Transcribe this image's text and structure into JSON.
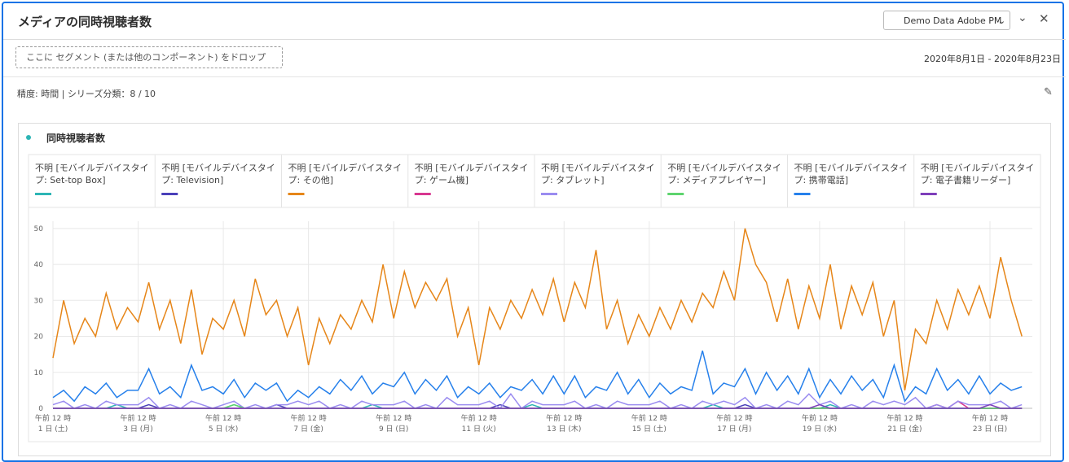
{
  "header": {
    "title": "メディアの同時視聴者数",
    "dropdown": "Demo Data Adobe PM",
    "drop_zone": "ここに セグメント (または他のコンポーネント) をドロップ",
    "date_range": "2020年8月1日 - 2020年8月23日",
    "settings": "精度: 時間 | シリーズ分類：8 / 10"
  },
  "chart_data": {
    "type": "line",
    "title": "同時視聴者数",
    "x_time_label": "午前 12 時",
    "categories": [
      "1 日 (土)",
      null,
      null,
      null,
      null,
      null,
      null,
      null,
      "3 日 (月)",
      null,
      null,
      null,
      null,
      null,
      null,
      null,
      "5 日 (水)",
      null,
      null,
      null,
      null,
      null,
      null,
      null,
      "7 日 (金)",
      null,
      null,
      null,
      null,
      null,
      null,
      null,
      "9 日 (日)",
      null,
      null,
      null,
      null,
      null,
      null,
      null,
      "11 日 (火)",
      null,
      null,
      null,
      null,
      null,
      null,
      null,
      "13 日 (木)",
      null,
      null,
      null,
      null,
      null,
      null,
      null,
      "15 日 (土)",
      null,
      null,
      null,
      null,
      null,
      null,
      null,
      "17 日 (月)",
      null,
      null,
      null,
      null,
      null,
      null,
      null,
      "19 日 (水)",
      null,
      null,
      null,
      null,
      null,
      null,
      null,
      "21 日 (金)",
      null,
      null,
      null,
      null,
      null,
      null,
      null,
      "23 日 (日)",
      null,
      null,
      null
    ],
    "ylim": [
      0,
      52
    ],
    "yticks": [
      0,
      10,
      20,
      30,
      40,
      50
    ],
    "grid": true,
    "series": [
      {
        "name": "不明 [モバイルデバイスタイプ: Set-top Box]",
        "color": "#2db5b5",
        "values": [
          0,
          0,
          0,
          0,
          0,
          0,
          1,
          0,
          0,
          0,
          0,
          0,
          0,
          0,
          0,
          0,
          0,
          1,
          0,
          0,
          0,
          0,
          0,
          0,
          0,
          0,
          0,
          0,
          0,
          0,
          1,
          0,
          0,
          0,
          0,
          0,
          0,
          0,
          0,
          0,
          0,
          0,
          0,
          0,
          0,
          1,
          0,
          0,
          0,
          0,
          0,
          0,
          0,
          0,
          0,
          0,
          0,
          0,
          0,
          0,
          0,
          0,
          1,
          0,
          0,
          0,
          0,
          0,
          0,
          0,
          0,
          0,
          0,
          1,
          0,
          0,
          0,
          0,
          0,
          0,
          0,
          0,
          0,
          0,
          0,
          0,
          0,
          0,
          0,
          0,
          0,
          0
        ]
      },
      {
        "name": "不明 [モバイルデバイスタイプ: Television]",
        "color": "#4a40b9",
        "values": [
          0,
          0,
          0,
          0,
          0,
          0,
          0,
          0,
          0,
          1,
          0,
          0,
          0,
          0,
          0,
          0,
          0,
          0,
          0,
          0,
          0,
          1,
          0,
          0,
          0,
          0,
          0,
          0,
          0,
          0,
          0,
          0,
          0,
          0,
          0,
          0,
          0,
          0,
          0,
          0,
          0,
          0,
          1,
          0,
          0,
          0,
          0,
          0,
          0,
          0,
          0,
          0,
          0,
          0,
          0,
          0,
          0,
          0,
          0,
          0,
          0,
          0,
          0,
          0,
          0,
          1,
          0,
          0,
          0,
          0,
          0,
          0,
          0,
          0,
          0,
          0,
          0,
          0,
          0,
          0,
          0,
          0,
          0,
          0,
          0,
          0,
          0,
          0,
          0,
          0,
          0,
          0
        ]
      },
      {
        "name": "不明 [モバイルデバイスタイプ: その他]",
        "color": "#e68619",
        "values": [
          14,
          30,
          18,
          25,
          20,
          32,
          22,
          28,
          24,
          35,
          22,
          30,
          18,
          33,
          15,
          25,
          22,
          30,
          20,
          36,
          26,
          30,
          20,
          28,
          12,
          25,
          18,
          26,
          22,
          30,
          24,
          40,
          25,
          38,
          28,
          35,
          30,
          36,
          20,
          28,
          12,
          28,
          22,
          30,
          25,
          33,
          26,
          36,
          24,
          35,
          28,
          44,
          22,
          30,
          18,
          26,
          20,
          28,
          22,
          30,
          24,
          32,
          28,
          38,
          30,
          50,
          40,
          35,
          24,
          36,
          22,
          34,
          25,
          40,
          22,
          34,
          26,
          35,
          20,
          30,
          5,
          22,
          18,
          30,
          22,
          33,
          26,
          34,
          25,
          42,
          30,
          20
        ]
      },
      {
        "name": "不明 [モバイルデバイスタイプ: ゲーム機]",
        "color": "#d83790",
        "values": [
          0,
          0,
          0,
          0,
          0,
          0,
          0,
          0,
          0,
          0,
          0,
          0,
          0,
          0,
          0,
          0,
          0,
          0,
          0,
          0,
          0,
          0,
          0,
          0,
          0,
          0,
          0,
          0,
          0,
          0,
          0,
          0,
          0,
          0,
          0,
          0,
          0,
          0,
          0,
          0,
          0,
          0,
          0,
          0,
          0,
          0,
          0,
          0,
          0,
          0,
          0,
          0,
          0,
          0,
          0,
          0,
          0,
          0,
          0,
          0,
          0,
          0,
          0,
          0,
          0,
          0,
          0,
          0,
          0,
          0,
          0,
          0,
          0,
          0,
          0,
          0,
          0,
          0,
          0,
          0,
          0,
          0,
          0,
          1,
          0,
          2,
          0,
          0,
          0,
          0,
          0,
          0
        ]
      },
      {
        "name": "不明 [モバイルデバイスタイプ: タブレット]",
        "color": "#9a8cf0",
        "values": [
          1,
          2,
          0,
          1,
          0,
          2,
          1,
          1,
          1,
          3,
          0,
          1,
          0,
          2,
          1,
          0,
          1,
          2,
          0,
          1,
          0,
          1,
          1,
          2,
          1,
          2,
          0,
          1,
          0,
          2,
          1,
          1,
          1,
          2,
          0,
          1,
          0,
          3,
          1,
          1,
          1,
          2,
          0,
          4,
          0,
          2,
          1,
          1,
          1,
          2,
          0,
          1,
          0,
          2,
          1,
          1,
          1,
          2,
          0,
          1,
          0,
          2,
          1,
          2,
          1,
          3,
          0,
          1,
          0,
          2,
          1,
          4,
          1,
          2,
          0,
          1,
          0,
          2,
          1,
          2,
          1,
          3,
          0,
          1,
          0,
          2,
          1,
          1,
          1,
          2,
          0,
          1
        ]
      },
      {
        "name": "不明 [モバイルデバイスタイプ: メディアプレイヤー]",
        "color": "#5ed46e",
        "values": [
          0,
          0,
          0,
          0,
          0,
          0,
          0,
          0,
          0,
          0,
          0,
          0,
          0,
          0,
          0,
          0,
          0,
          1,
          0,
          0,
          0,
          0,
          0,
          0,
          0,
          0,
          0,
          0,
          0,
          0,
          0,
          0,
          0,
          0,
          0,
          0,
          0,
          0,
          0,
          0,
          0,
          0,
          0,
          0,
          0,
          0,
          0,
          0,
          0,
          0,
          0,
          0,
          0,
          0,
          0,
          0,
          0,
          0,
          0,
          0,
          0,
          0,
          0,
          0,
          0,
          0,
          0,
          0,
          0,
          0,
          0,
          0,
          0,
          0,
          0,
          0,
          0,
          0,
          0,
          0,
          0,
          0,
          0,
          0,
          0,
          0,
          0,
          0,
          0,
          0,
          0,
          0
        ]
      },
      {
        "name": "不明 [モバイルデバイスタイプ: 携帯電話]",
        "color": "#2680eb",
        "values": [
          3,
          5,
          2,
          6,
          4,
          7,
          3,
          5,
          5,
          11,
          4,
          6,
          3,
          12,
          5,
          6,
          4,
          8,
          3,
          7,
          5,
          7,
          2,
          5,
          3,
          6,
          4,
          8,
          5,
          9,
          4,
          7,
          6,
          10,
          4,
          8,
          5,
          9,
          3,
          6,
          4,
          7,
          3,
          6,
          5,
          8,
          4,
          9,
          4,
          9,
          3,
          6,
          5,
          10,
          4,
          8,
          3,
          7,
          4,
          6,
          5,
          16,
          4,
          7,
          6,
          11,
          4,
          10,
          5,
          9,
          4,
          11,
          3,
          8,
          4,
          9,
          5,
          8,
          3,
          12,
          2,
          6,
          4,
          11,
          5,
          8,
          4,
          9,
          4,
          7,
          5,
          6
        ]
      },
      {
        "name": "不明 [モバイルデバイスタイプ: 電子書籍リーダー]",
        "color": "#7e3fba",
        "values": [
          0,
          0,
          0,
          0,
          0,
          0,
          0,
          0,
          0,
          0,
          0,
          0,
          0,
          0,
          0,
          0,
          0,
          0,
          0,
          0,
          0,
          0,
          0,
          0,
          0,
          0,
          0,
          0,
          0,
          0,
          0,
          0,
          0,
          0,
          0,
          0,
          0,
          0,
          0,
          0,
          0,
          0,
          0,
          0,
          0,
          0,
          0,
          0,
          0,
          0,
          0,
          0,
          0,
          0,
          0,
          0,
          0,
          0,
          0,
          0,
          0,
          0,
          0,
          0,
          0,
          0,
          0,
          0,
          0,
          0,
          0,
          0,
          1,
          0,
          0,
          0,
          0,
          0,
          0,
          0,
          0,
          0,
          0,
          0,
          0,
          0,
          0,
          0,
          1,
          0,
          0,
          0
        ]
      }
    ]
  }
}
